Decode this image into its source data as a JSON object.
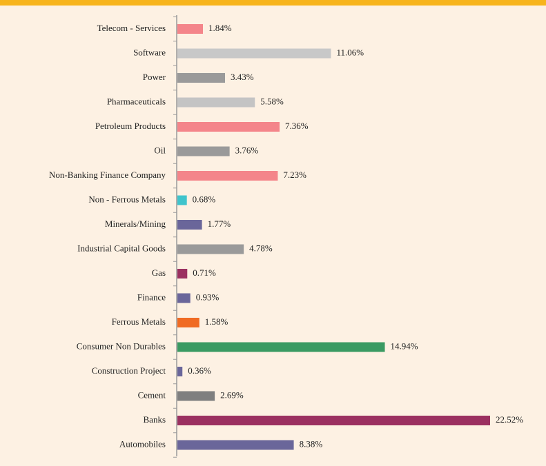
{
  "chart_data": {
    "type": "bar",
    "orientation": "horizontal",
    "categories": [
      "Telecom - Services",
      "Software",
      "Power",
      "Pharmaceuticals",
      "Petroleum Products",
      "Oil",
      "Non-Banking Finance Company",
      "Non - Ferrous Metals",
      "Minerals/Mining",
      "Industrial Capital Goods",
      "Gas",
      "Finance",
      "Ferrous Metals",
      "Consumer Non Durables",
      "Construction Project",
      "Cement",
      "Banks",
      "Automobiles"
    ],
    "values": [
      1.84,
      11.06,
      3.43,
      5.58,
      7.36,
      3.76,
      7.23,
      0.68,
      1.77,
      4.78,
      0.71,
      0.93,
      1.58,
      14.94,
      0.36,
      2.69,
      22.52,
      8.38
    ],
    "value_labels": [
      "1.84%",
      "11.06%",
      "3.43%",
      "5.58%",
      "7.36%",
      "3.76%",
      "7.23%",
      "0.68%",
      "1.77%",
      "4.78%",
      "0.71%",
      "0.93%",
      "1.58%",
      "14.94%",
      "0.36%",
      "2.69%",
      "22.52%",
      "8.38%"
    ],
    "colors": [
      "#f4858a",
      "#c8c8c8",
      "#9a9a9a",
      "#c4c4c4",
      "#f4858a",
      "#9a9a9a",
      "#f4858a",
      "#3fc4cc",
      "#6a669a",
      "#9a9a9a",
      "#9b3060",
      "#6a669a",
      "#f06b23",
      "#3a9a62",
      "#6a669a",
      "#7f7f7f",
      "#9b3060",
      "#6a669a"
    ]
  }
}
